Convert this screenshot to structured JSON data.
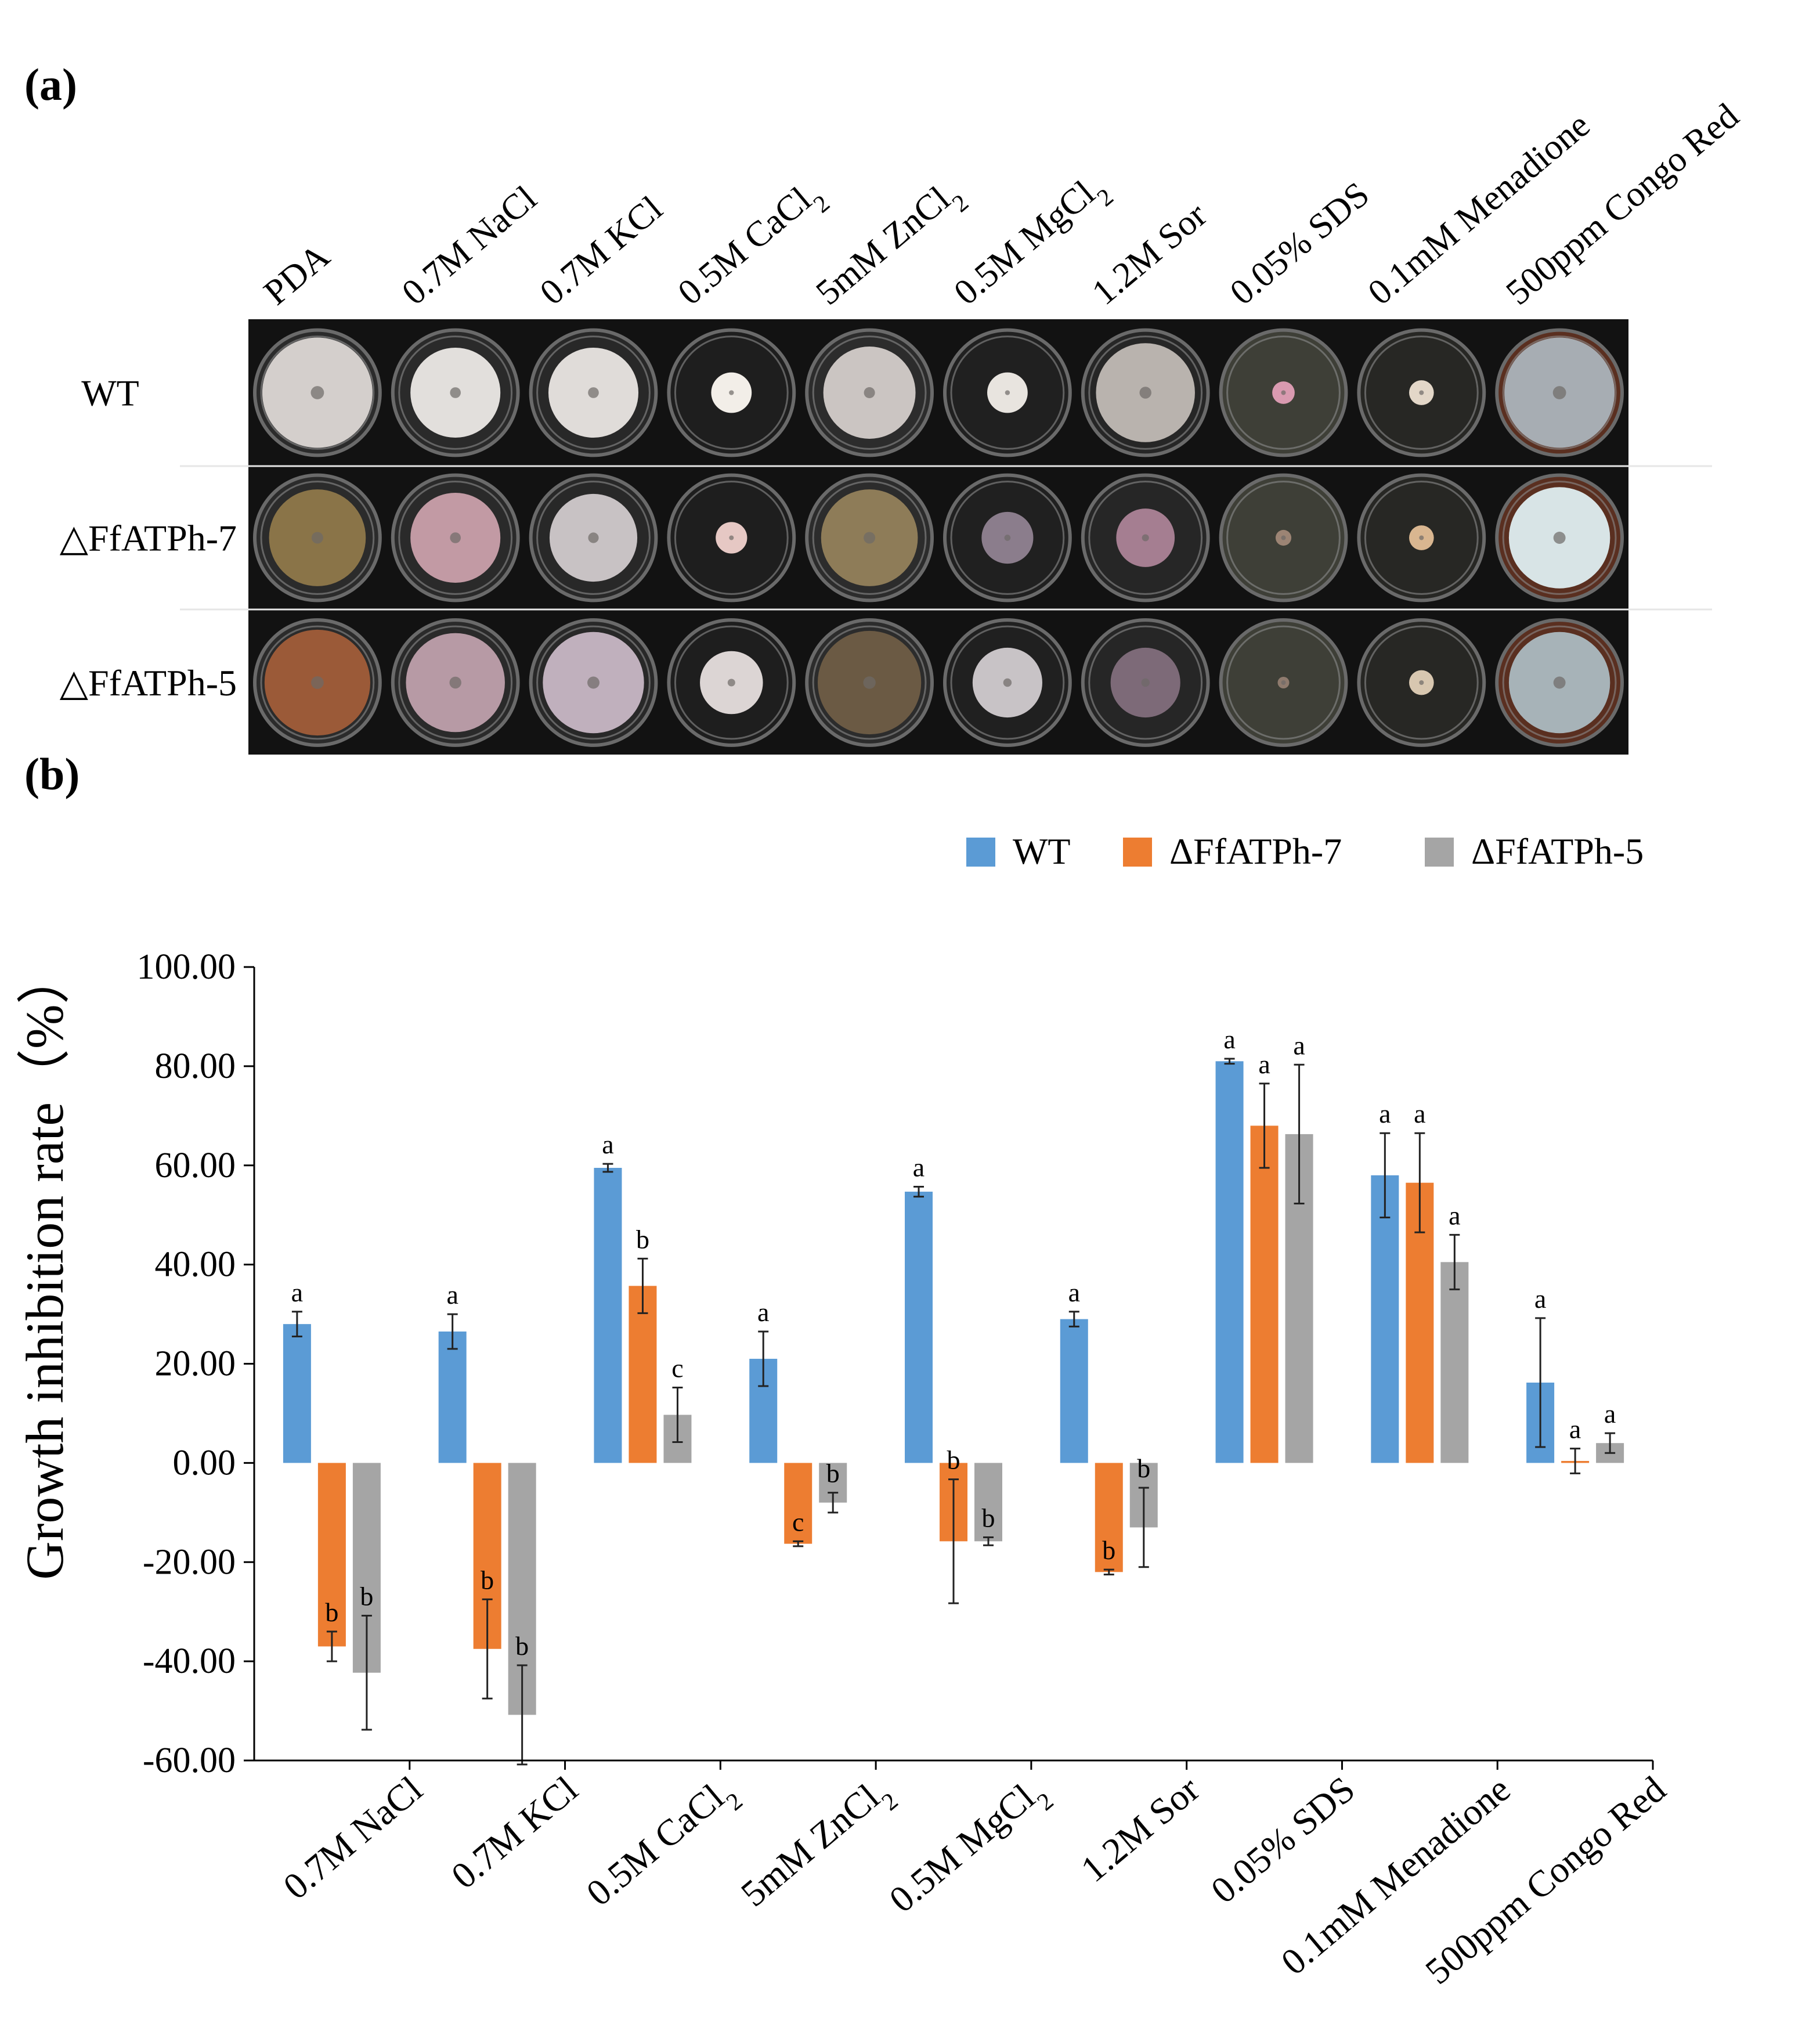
{
  "colors": {
    "wt": "#5B9BD5",
    "ffatph7": "#ED7D31",
    "ffatph5": "#A5A5A5"
  },
  "panel_a": {
    "label": "(a)",
    "conditions": [
      {
        "name": "PDA"
      },
      {
        "name": "0.7M NaCl"
      },
      {
        "name": "0.7M KCl"
      },
      {
        "name": "0.5M CaCl",
        "sub": "2"
      },
      {
        "name": "5mM ZnCl",
        "sub": "2"
      },
      {
        "name": "0.5M MgCl",
        "sub": "2"
      },
      {
        "name": "1.2M Sor"
      },
      {
        "name": "0.05% SDS"
      },
      {
        "name": "0.1mM Menadione"
      },
      {
        "name": "500ppm Congo Red"
      }
    ],
    "strains": [
      "WT",
      "△FfATPh-7",
      "△FfATPh-5"
    ]
  },
  "panel_b": {
    "label": "(b)"
  },
  "chart_data": {
    "type": "bar",
    "title": "",
    "xlabel": "",
    "ylabel": "Growth inhibition rate（%）",
    "ylim": [
      -60,
      100
    ],
    "yticks": [
      "100.00",
      "80.00",
      "60.00",
      "40.00",
      "20.00",
      "0.00",
      "-20.00",
      "-40.00",
      "-60.00"
    ],
    "legend_position": "top-right",
    "categories": [
      {
        "name": "0.7M NaCl"
      },
      {
        "name": "0.7M KCl"
      },
      {
        "name": "0.5M CaCl",
        "sub": "2"
      },
      {
        "name": "5mM ZnCl",
        "sub": "2"
      },
      {
        "name": "0.5M MgCl",
        "sub": "2"
      },
      {
        "name": "1.2M Sor"
      },
      {
        "name": "0.05% SDS"
      },
      {
        "name": "0.1mM Menadione"
      },
      {
        "name": "500ppm Congo Red"
      }
    ],
    "series": [
      {
        "name": "WT",
        "color": "#5B9BD5",
        "values": [
          28,
          26.5,
          59.5,
          21,
          54.7,
          29,
          81,
          58,
          16.2
        ],
        "errors": [
          2.5,
          3.5,
          0.8,
          5.5,
          1,
          1.5,
          0.5,
          8.5,
          13
        ],
        "letters": [
          "a",
          "a",
          "a",
          "a",
          "a",
          "a",
          "a",
          "a",
          "a"
        ]
      },
      {
        "name": "ΔFfATPh-7",
        "color": "#ED7D31",
        "values": [
          -37,
          -37.5,
          35.7,
          -16.3,
          -15.8,
          -22,
          68,
          56.5,
          0.4
        ],
        "errors": [
          3,
          10,
          5.5,
          0.5,
          12.5,
          0.5,
          8.5,
          10,
          2.5
        ],
        "letters": [
          "b",
          "b",
          "b",
          "c",
          "b",
          "b",
          "a",
          "a",
          "a"
        ]
      },
      {
        "name": "ΔFfATPh-5",
        "color": "#A5A5A5",
        "values": [
          -42.3,
          -50.8,
          9.7,
          -8,
          -15.8,
          -13,
          66.3,
          40.5,
          4
        ],
        "errors": [
          11.5,
          10,
          5.5,
          2,
          0.8,
          8,
          14,
          5.5,
          2
        ],
        "letters": [
          "b",
          "b",
          "c",
          "b",
          "b",
          "b",
          "a",
          "a",
          "a"
        ]
      }
    ]
  }
}
